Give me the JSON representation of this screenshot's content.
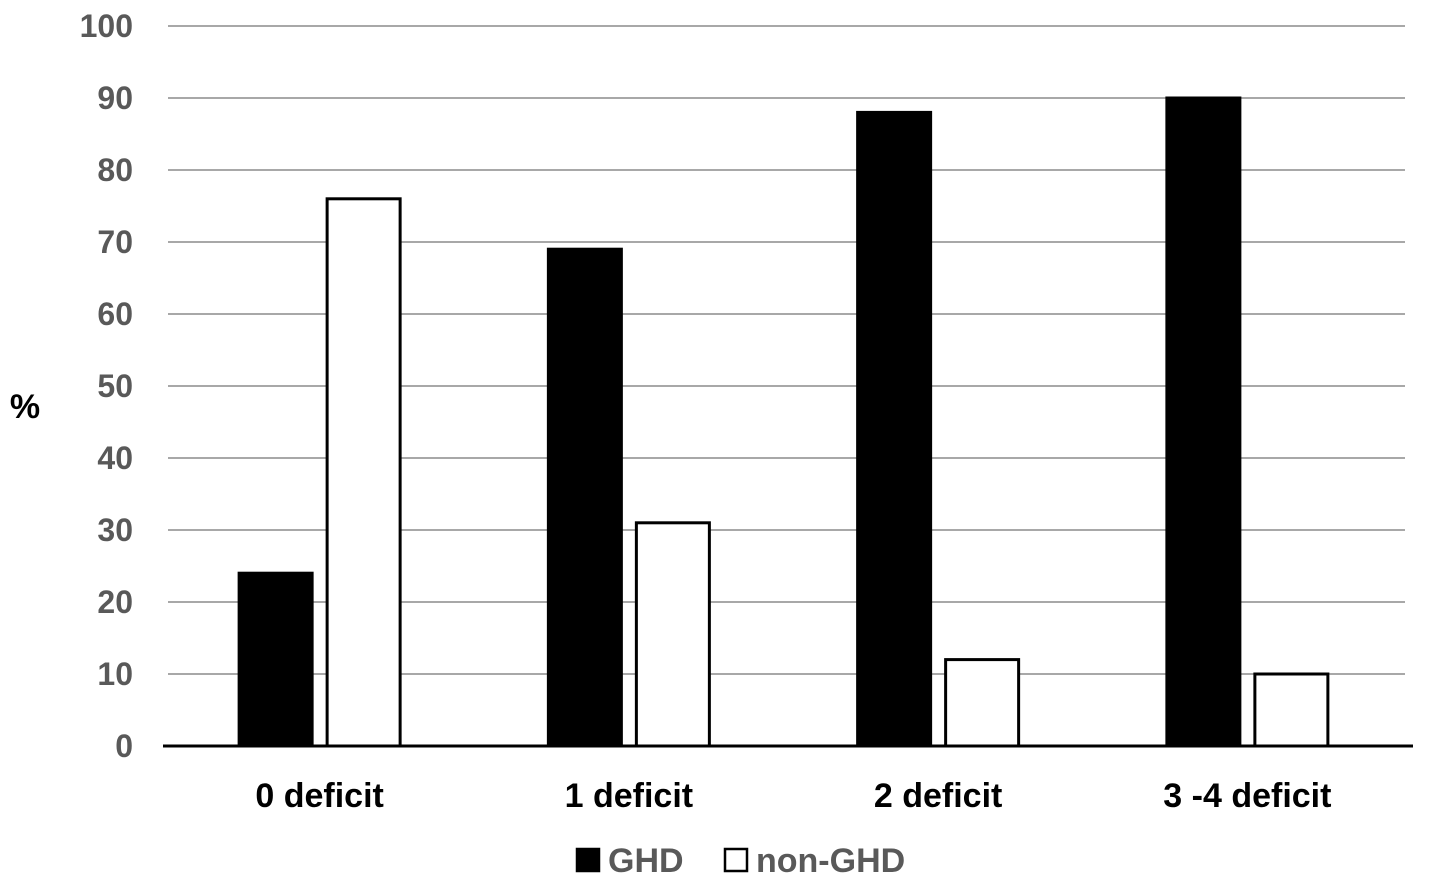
{
  "chart_data": {
    "type": "bar",
    "title": "",
    "xlabel": "",
    "ylabel": "%",
    "ylim": [
      0,
      100
    ],
    "yticks": [
      0,
      10,
      20,
      30,
      40,
      50,
      60,
      70,
      80,
      90,
      100
    ],
    "grid": true,
    "legend_position": "bottom-center",
    "categories": [
      "0 deficit",
      "1 deficit",
      "2 deficit",
      "3 -4 deficit"
    ],
    "series": [
      {
        "name": "GHD",
        "color": "#000000",
        "values": [
          24,
          69,
          88,
          90
        ]
      },
      {
        "name": "non-GHD",
        "color": "#ffffff",
        "values": [
          76,
          31,
          12,
          10
        ]
      }
    ]
  }
}
